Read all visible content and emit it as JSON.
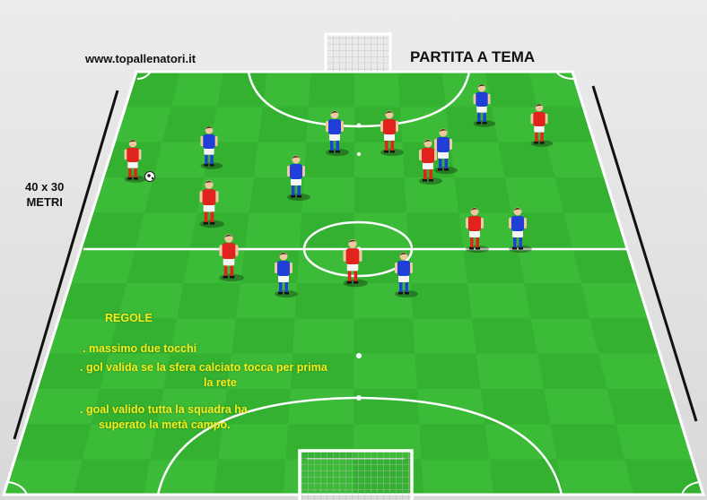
{
  "header": {
    "website": "www.topallenatori.it",
    "title": "PARTITA A TEMA"
  },
  "field_size": {
    "line1": "40 x 30",
    "line2": "METRI"
  },
  "rules": {
    "heading": "REGOLE",
    "rule1": ". massimo due tocchi",
    "rule2_line1": ". gol valida se la sfera calciato tocca per prima",
    "rule2_line2": "la rete",
    "rule3_line1": ". goal valido tutta la squadra ha",
    "rule3_line2": "superato la metà campo."
  },
  "colors": {
    "grass_light": "#3fc23a",
    "grass_dark": "#2fa92e",
    "line": "#ffffff",
    "team_red": "#e0231c",
    "team_blue": "#1f3fd6",
    "rules_text": "#f4ee1a"
  }
}
